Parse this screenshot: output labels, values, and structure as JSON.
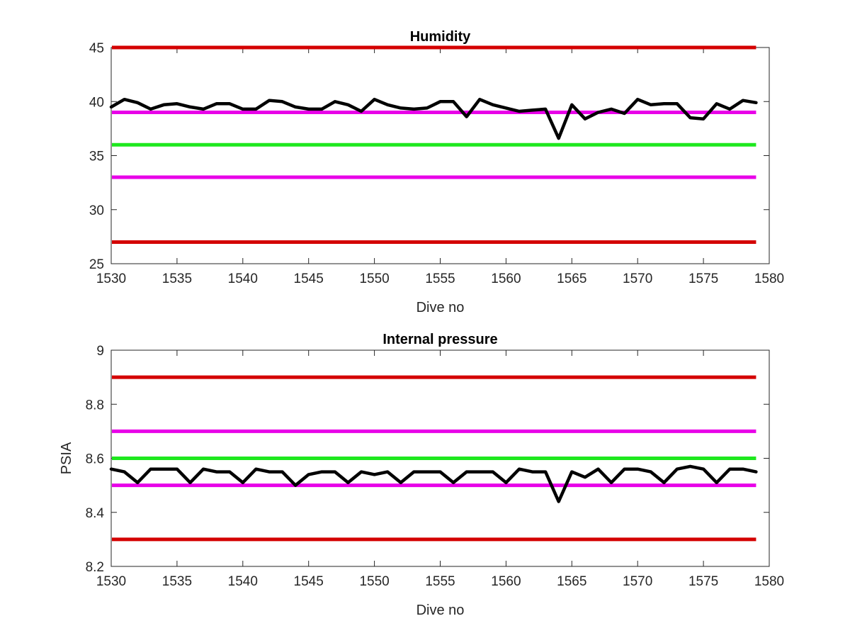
{
  "chart_data": [
    {
      "type": "line",
      "title": "Humidity",
      "xlabel": "Dive no",
      "ylabel": "",
      "xlim": [
        1530,
        1580
      ],
      "ylim": [
        25,
        45
      ],
      "xticks": [
        1530,
        1535,
        1540,
        1545,
        1550,
        1555,
        1560,
        1565,
        1570,
        1575,
        1580
      ],
      "yticks": [
        25,
        30,
        35,
        40,
        45
      ],
      "grid": false,
      "reference_lines": [
        {
          "y": 45,
          "color": "#d40000"
        },
        {
          "y": 27,
          "color": "#d40000"
        },
        {
          "y": 39,
          "color": "#e800e8"
        },
        {
          "y": 33,
          "color": "#e800e8"
        },
        {
          "y": 36,
          "color": "#1ee81e"
        }
      ],
      "series": [
        {
          "color": "#000000",
          "x": [
            1530,
            1531,
            1532,
            1533,
            1534,
            1535,
            1536,
            1537,
            1538,
            1539,
            1540,
            1541,
            1542,
            1543,
            1544,
            1545,
            1546,
            1547,
            1548,
            1549,
            1550,
            1551,
            1552,
            1553,
            1554,
            1555,
            1556,
            1557,
            1558,
            1559,
            1560,
            1561,
            1562,
            1563,
            1564,
            1565,
            1566,
            1567,
            1568,
            1569,
            1570,
            1571,
            1572,
            1573,
            1574,
            1575,
            1576,
            1577,
            1578,
            1579
          ],
          "values": [
            39.5,
            40.2,
            39.9,
            39.3,
            39.7,
            39.8,
            39.5,
            39.3,
            39.8,
            39.8,
            39.3,
            39.3,
            40.1,
            40.0,
            39.5,
            39.3,
            39.3,
            40.0,
            39.7,
            39.1,
            40.2,
            39.7,
            39.4,
            39.3,
            39.4,
            40.0,
            40.0,
            38.6,
            40.2,
            39.7,
            39.4,
            39.1,
            39.2,
            39.3,
            36.6,
            39.7,
            38.4,
            39.0,
            39.3,
            38.9,
            40.2,
            39.7,
            39.8,
            39.8,
            38.5,
            38.4,
            39.8,
            39.3,
            40.1,
            39.9
          ]
        }
      ]
    },
    {
      "type": "line",
      "title": "Internal pressure",
      "xlabel": "Dive no",
      "ylabel": "PSIA",
      "xlim": [
        1530,
        1580
      ],
      "ylim": [
        8.2,
        9
      ],
      "xticks": [
        1530,
        1535,
        1540,
        1545,
        1550,
        1555,
        1560,
        1565,
        1570,
        1575,
        1580
      ],
      "yticks": [
        8.2,
        8.4,
        8.6,
        8.8,
        9
      ],
      "grid": false,
      "reference_lines": [
        {
          "y": 8.9,
          "color": "#d40000"
        },
        {
          "y": 8.3,
          "color": "#d40000"
        },
        {
          "y": 8.7,
          "color": "#e800e8"
        },
        {
          "y": 8.5,
          "color": "#e800e8"
        },
        {
          "y": 8.6,
          "color": "#1ee81e"
        }
      ],
      "series": [
        {
          "color": "#000000",
          "x": [
            1530,
            1531,
            1532,
            1533,
            1534,
            1535,
            1536,
            1537,
            1538,
            1539,
            1540,
            1541,
            1542,
            1543,
            1544,
            1545,
            1546,
            1547,
            1548,
            1549,
            1550,
            1551,
            1552,
            1553,
            1554,
            1555,
            1556,
            1557,
            1558,
            1559,
            1560,
            1561,
            1562,
            1563,
            1564,
            1565,
            1566,
            1567,
            1568,
            1569,
            1570,
            1571,
            1572,
            1573,
            1574,
            1575,
            1576,
            1577,
            1578,
            1579
          ],
          "values": [
            8.56,
            8.55,
            8.51,
            8.56,
            8.56,
            8.56,
            8.51,
            8.56,
            8.55,
            8.55,
            8.51,
            8.56,
            8.55,
            8.55,
            8.5,
            8.54,
            8.55,
            8.55,
            8.51,
            8.55,
            8.54,
            8.55,
            8.51,
            8.55,
            8.55,
            8.55,
            8.51,
            8.55,
            8.55,
            8.55,
            8.51,
            8.56,
            8.55,
            8.55,
            8.44,
            8.55,
            8.53,
            8.56,
            8.51,
            8.56,
            8.56,
            8.55,
            8.51,
            8.56,
            8.57,
            8.56,
            8.51,
            8.56,
            8.56,
            8.55
          ]
        }
      ]
    }
  ]
}
